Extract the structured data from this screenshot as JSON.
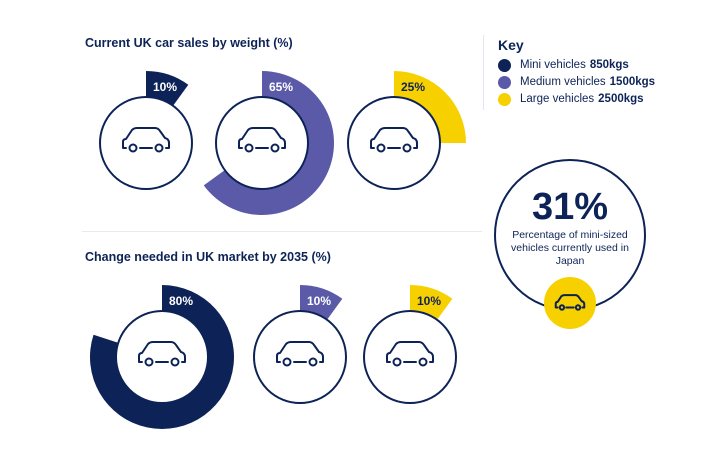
{
  "chart_data": [
    {
      "type": "pie",
      "title": "Current UK car sales by weight (%)",
      "categories": [
        "Mini vehicles",
        "Medium vehicles",
        "Large vehicles"
      ],
      "values": [
        10,
        65,
        25
      ],
      "labels": [
        "10%",
        "65%",
        "25%"
      ]
    },
    {
      "type": "pie",
      "title": "Change needed in UK market by 2035 (%)",
      "categories": [
        "Mini vehicles",
        "Medium vehicles",
        "Large vehicles"
      ],
      "values": [
        80,
        10,
        10
      ],
      "labels": [
        "80%",
        "10%",
        "10%"
      ]
    }
  ],
  "colors": {
    "mini": "#0d2357",
    "medium": "#5b5aa8",
    "large": "#f7d000",
    "text": "#0d2357"
  },
  "key": {
    "title": "Key",
    "items": [
      {
        "label": "Mini vehicles",
        "weight": "850kgs",
        "color": "#0d2357"
      },
      {
        "label": "Medium vehicles",
        "weight": "1500kgs",
        "color": "#5b5aa8"
      },
      {
        "label": "Large vehicles",
        "weight": "2500kgs",
        "color": "#f7d000"
      }
    ]
  },
  "stat": {
    "value": "31%",
    "text": "Percentage of mini-sized vehicles currently used in Japan",
    "icon": "car-icon"
  }
}
